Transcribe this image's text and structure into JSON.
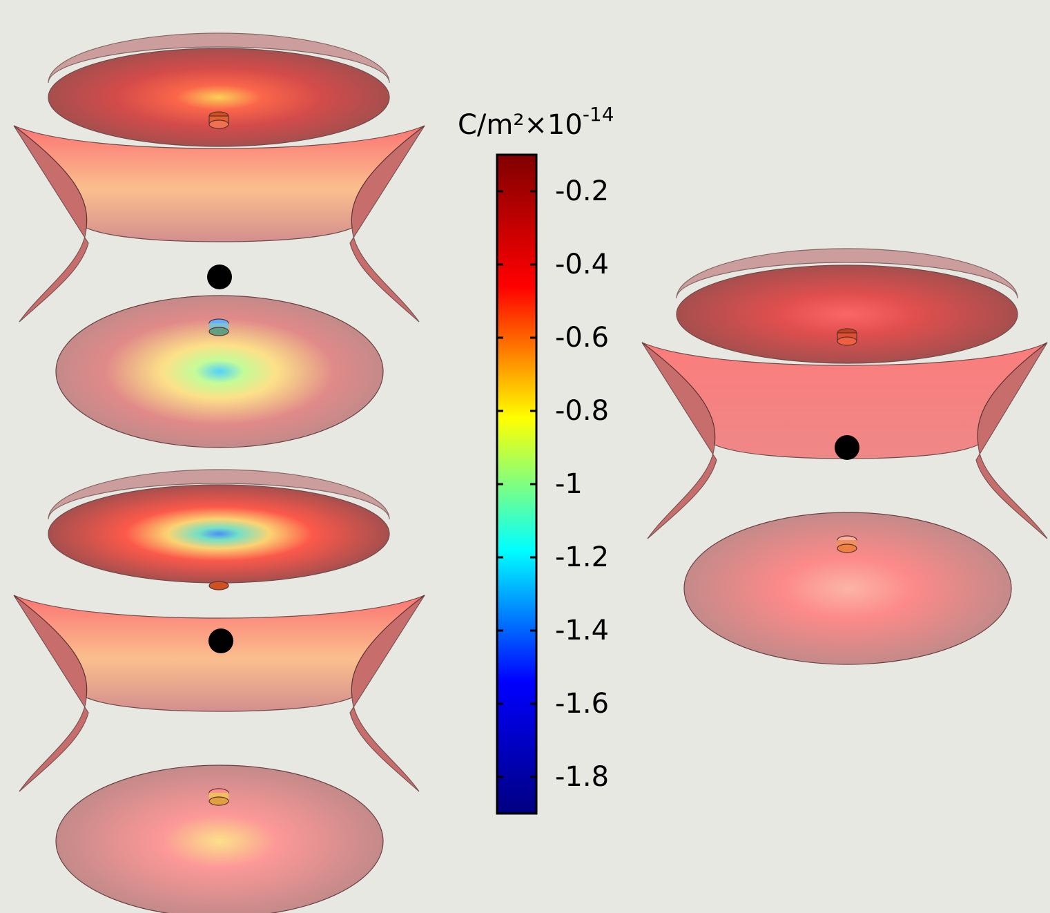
{
  "colorbar": {
    "unit": "C/m²×10",
    "exponent": "-14",
    "lim": [
      -1.9,
      -0.1
    ],
    "ticks": [
      -0.2,
      -0.4,
      -0.6,
      -0.8,
      -1,
      -1.2,
      -1.4,
      -1.6,
      -1.8
    ],
    "colormap": [
      "#000080",
      "#0000ff",
      "#00ffff",
      "#ffff00",
      "#ff0000",
      "#800000"
    ]
  }
}
